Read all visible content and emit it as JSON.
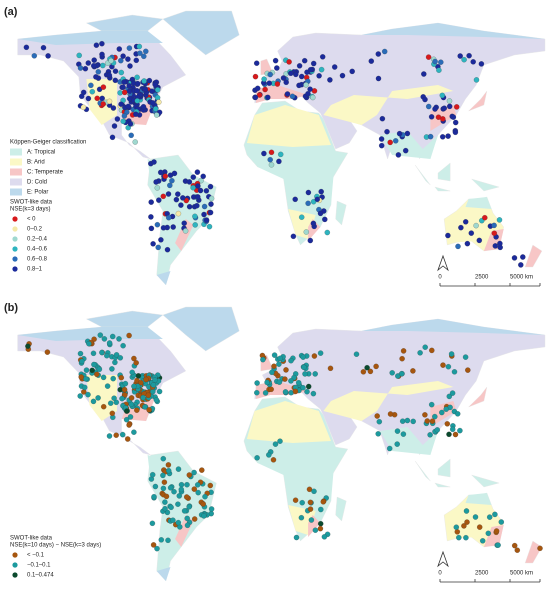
{
  "panels": [
    {
      "label": "(a)",
      "climate_legend": {
        "title": "Köppen-Geiger classification",
        "items": [
          {
            "label": "A: Tropical",
            "color": "#cdeee8"
          },
          {
            "label": "B: Arid",
            "color": "#fbf8c6"
          },
          {
            "label": "C: Temperate",
            "color": "#f7c6c6"
          },
          {
            "label": "D: Cold",
            "color": "#dddbee"
          },
          {
            "label": "E: Polar",
            "color": "#bcd9ec"
          }
        ]
      },
      "data_legend": {
        "title": "SWOT-like data",
        "subtitle": "NSE(k=3 days)",
        "items": [
          {
            "label": "< 0",
            "color": "#d7191c"
          },
          {
            "label": "0–0.2",
            "color": "#f5e9a8"
          },
          {
            "label": "0.2–0.4",
            "color": "#9fd8cf"
          },
          {
            "label": "0.4–0.6",
            "color": "#2eb4bf"
          },
          {
            "label": "0.6–0.8",
            "color": "#2a6cb8"
          },
          {
            "label": "0.8–1",
            "color": "#1b2a9b"
          }
        ]
      },
      "scale_bar": [
        "0",
        "2500",
        "5000 km"
      ]
    },
    {
      "label": "(b)",
      "data_legend": {
        "title": "SWOT-like data",
        "subtitle": "NSE(k=10 days) − NSE(k=3 days)",
        "items": [
          {
            "label": "< −0.1",
            "color": "#a6560f"
          },
          {
            "label": "−0.1–0.1",
            "color": "#1c9a9e"
          },
          {
            "label": "0.1–0.474",
            "color": "#0b4a2e"
          }
        ]
      },
      "scale_bar": [
        "0",
        "2500",
        "5000 km"
      ]
    }
  ]
}
